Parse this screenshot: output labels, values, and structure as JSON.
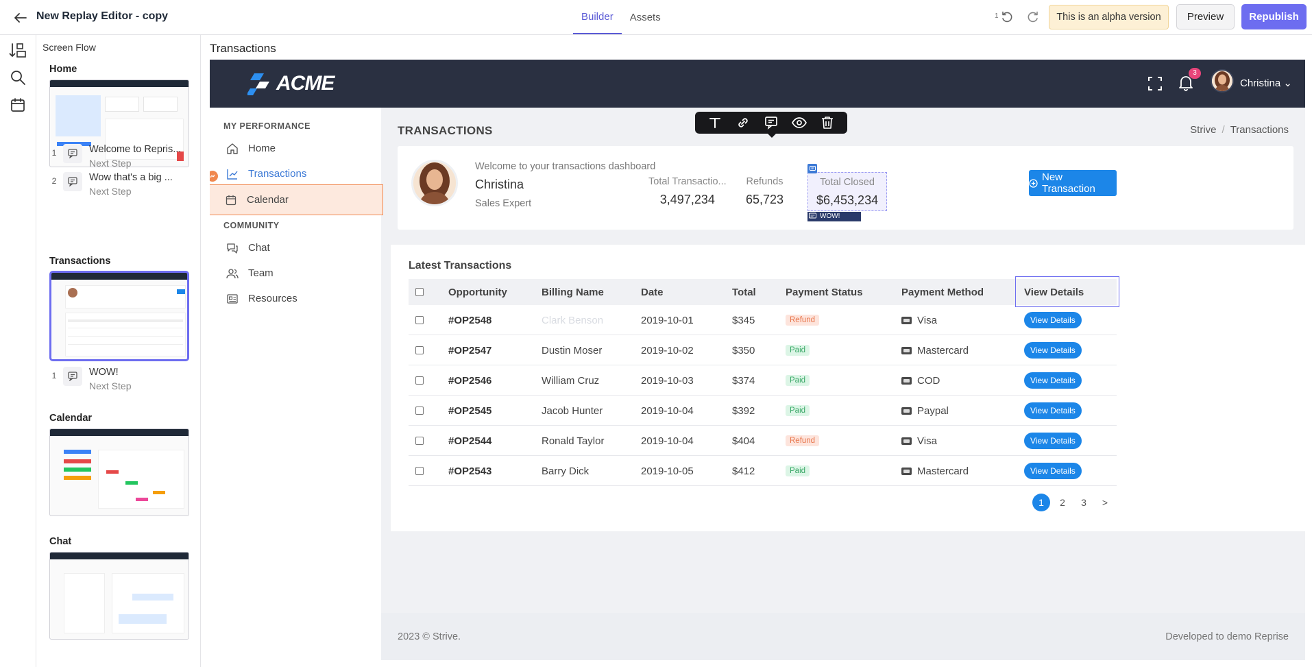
{
  "app": {
    "title": "New Replay Editor - copy",
    "tabs": [
      "Builder",
      "Assets"
    ],
    "active_tab": "Builder",
    "undo_count": "1",
    "alpha_notice": "This is an alpha version",
    "preview_label": "Preview",
    "republish_label": "Republish",
    "accent_color": "#6d6df0"
  },
  "flow": {
    "heading": "Screen Flow",
    "screens": [
      {
        "label": "Home",
        "steps": [
          {
            "num": "1",
            "title": "Welcome to Repris...",
            "sub": "Next Step"
          },
          {
            "num": "2",
            "title": "Wow that's a big ...",
            "sub": "Next Step"
          }
        ]
      },
      {
        "label": "Transactions",
        "steps": [
          {
            "num": "1",
            "title": "WOW!",
            "sub": "Next Step"
          }
        ]
      },
      {
        "label": "Calendar",
        "steps": []
      },
      {
        "label": "Chat",
        "steps": []
      }
    ]
  },
  "canvas": {
    "title": "Transactions"
  },
  "site": {
    "logo": "ACME",
    "notif_count": "3",
    "user": "Christina",
    "sidebar": {
      "section1": "MY PERFORMANCE",
      "section2": "COMMUNITY",
      "items": [
        {
          "label": "Home",
          "icon": "home-icon"
        },
        {
          "label": "Transactions",
          "icon": "chart-line-icon"
        },
        {
          "label": "Calendar",
          "icon": "calendar-icon"
        },
        {
          "label": "Chat",
          "icon": "chat-icon"
        },
        {
          "label": "Team",
          "icon": "team-icon"
        },
        {
          "label": "Resources",
          "icon": "resources-icon"
        }
      ]
    },
    "page_title": "TRANSACTIONS",
    "breadcrumb": [
      "Strive",
      "Transactions"
    ],
    "welcome": {
      "greeting": "Welcome to your transactions dashboard",
      "name": "Christina",
      "role": "Sales Expert"
    },
    "stats": [
      {
        "label": "Total Transactio...",
        "value": "3,497,234"
      },
      {
        "label": "Refunds",
        "value": "65,723"
      },
      {
        "label": "Total Closed",
        "value": "$6,453,234"
      }
    ],
    "annotation_label": "WOW!",
    "new_tx_label": "New Transaction",
    "latest_title": "Latest Transactions",
    "columns": [
      "Opportunity",
      "Billing Name",
      "Date",
      "Total",
      "Payment Status",
      "Payment Method",
      "View Details"
    ],
    "rows": [
      {
        "opp": "#OP2548",
        "name": "Clark Benson",
        "date": "2019-10-01",
        "total": "$345",
        "status": "Refund",
        "method": "Visa",
        "action": "View Details"
      },
      {
        "opp": "#OP2547",
        "name": "Dustin Moser",
        "date": "2019-10-02",
        "total": "$350",
        "status": "Paid",
        "method": "Mastercard",
        "action": "View Details"
      },
      {
        "opp": "#OP2546",
        "name": "William Cruz",
        "date": "2019-10-03",
        "total": "$374",
        "status": "Paid",
        "method": "COD",
        "action": "View Details"
      },
      {
        "opp": "#OP2545",
        "name": "Jacob Hunter",
        "date": "2019-10-04",
        "total": "$392",
        "status": "Paid",
        "method": "Paypal",
        "action": "View Details"
      },
      {
        "opp": "#OP2544",
        "name": "Ronald Taylor",
        "date": "2019-10-04",
        "total": "$404",
        "status": "Refund",
        "method": "Visa",
        "action": "View Details"
      },
      {
        "opp": "#OP2543",
        "name": "Barry Dick",
        "date": "2019-10-05",
        "total": "$412",
        "status": "Paid",
        "method": "Mastercard",
        "action": "View Details"
      }
    ],
    "pagination": [
      "1",
      "2",
      "3",
      ">"
    ],
    "active_page": "1",
    "footer_left": "2023 © Strive.",
    "footer_right": "Developed to demo Reprise"
  }
}
